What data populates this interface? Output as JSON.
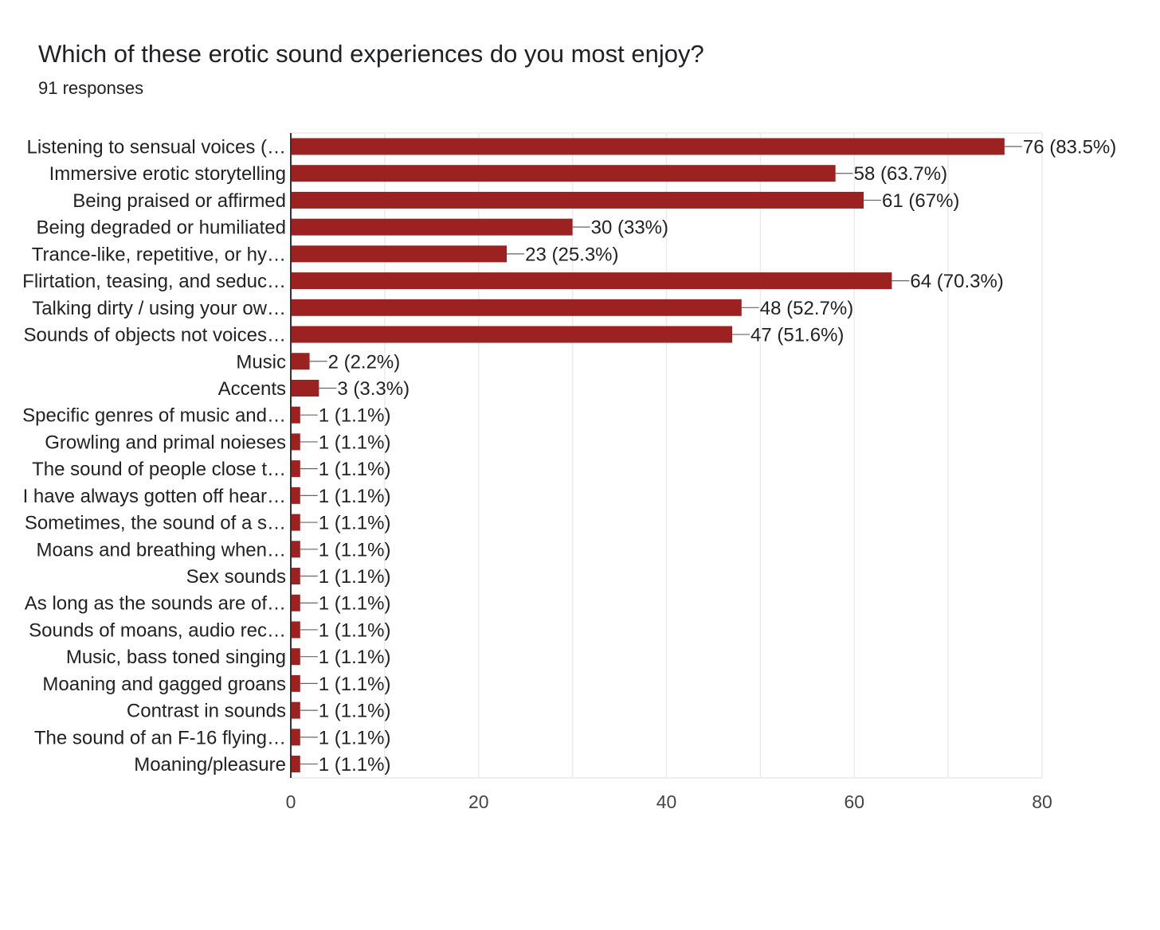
{
  "header": {
    "title": "Which of these erotic sound experiences do you most enjoy?",
    "subtitle": "91 responses"
  },
  "colors": {
    "bar": "#9c2222",
    "grid": "#ebebeb",
    "axis": "#333333",
    "leader": "#666666"
  },
  "chart_data": {
    "type": "bar",
    "orientation": "horizontal",
    "title": "Which of these erotic sound experiences do you most enjoy?",
    "subtitle": "91 responses",
    "categories": [
      "Listening to sensual voices (…",
      "Immersive erotic storytelling",
      "Being praised or affirmed",
      "Being degraded or humiliated",
      "Trance-like, repetitive, or hy…",
      "Flirtation, teasing, and seduc…",
      "Talking dirty / using your ow…",
      "Sounds of objects not voices…",
      "Music",
      "Accents",
      "Specific genres of music and…",
      "Growling and primal noieses",
      "The sound of people close t…",
      "I have always gotten off hear…",
      "Sometimes, the sound of a s…",
      "Moans and breathing when…",
      "Sex sounds",
      "As long as the sounds are of…",
      "Sounds of moans, audio rec…",
      "Music, bass toned singing",
      "Moaning and gagged groans",
      "Contrast in sounds",
      "The sound of an F-16 flying…",
      "Moaning/pleasure"
    ],
    "values": [
      76,
      58,
      61,
      30,
      23,
      64,
      48,
      47,
      2,
      3,
      1,
      1,
      1,
      1,
      1,
      1,
      1,
      1,
      1,
      1,
      1,
      1,
      1,
      1
    ],
    "value_labels": [
      "76 (83.5%)",
      "58 (63.7%)",
      "61 (67%)",
      "30 (33%)",
      "23 (25.3%)",
      "64 (70.3%)",
      "48 (52.7%)",
      "47 (51.6%)",
      "2 (2.2%)",
      "3 (3.3%)",
      "1 (1.1%)",
      "1 (1.1%)",
      "1 (1.1%)",
      "1 (1.1%)",
      "1 (1.1%)",
      "1 (1.1%)",
      "1 (1.1%)",
      "1 (1.1%)",
      "1 (1.1%)",
      "1 (1.1%)",
      "1 (1.1%)",
      "1 (1.1%)",
      "1 (1.1%)",
      "1 (1.1%)"
    ],
    "xlim": [
      0,
      80
    ],
    "xticks": [
      0,
      20,
      40,
      60,
      80
    ],
    "minor_gridlines": [
      10,
      30,
      50,
      70
    ],
    "grid": true,
    "legend": "none"
  }
}
